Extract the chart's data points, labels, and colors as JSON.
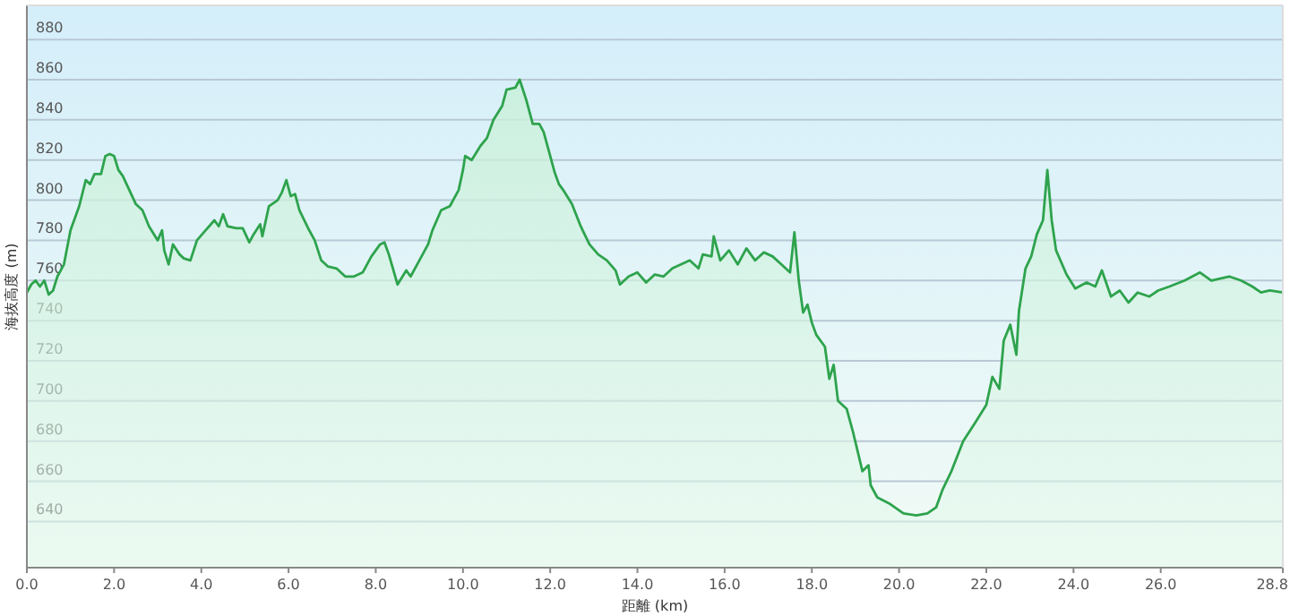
{
  "chart_data": {
    "type": "area",
    "xlabel": "距離 (km)",
    "ylabel": "海抜高度 (m)",
    "x": [
      0,
      0.1,
      0.2,
      0.3,
      0.4,
      0.5,
      0.6,
      0.7,
      0.85,
      1.0,
      1.2,
      1.35,
      1.45,
      1.55,
      1.7,
      1.8,
      1.9,
      2.0,
      2.1,
      2.2,
      2.35,
      2.5,
      2.65,
      2.8,
      3.0,
      3.1,
      3.15,
      3.25,
      3.35,
      3.5,
      3.6,
      3.75,
      3.9,
      4.1,
      4.3,
      4.4,
      4.5,
      4.6,
      4.8,
      4.95,
      5.1,
      5.2,
      5.35,
      5.4,
      5.55,
      5.75,
      5.85,
      5.95,
      6.05,
      6.15,
      6.25,
      6.45,
      6.6,
      6.75,
      6.9,
      7.1,
      7.3,
      7.5,
      7.7,
      7.9,
      8.1,
      8.2,
      8.3,
      8.5,
      8.7,
      8.8,
      9.0,
      9.2,
      9.3,
      9.5,
      9.7,
      9.9,
      10.0,
      10.05,
      10.2,
      10.4,
      10.55,
      10.7,
      10.9,
      11.0,
      11.2,
      11.3,
      11.45,
      11.6,
      11.75,
      11.85,
      12.0,
      12.1,
      12.2,
      12.3,
      12.5,
      12.7,
      12.9,
      13.1,
      13.3,
      13.5,
      13.6,
      13.8,
      14.0,
      14.2,
      14.4,
      14.6,
      14.8,
      15.0,
      15.2,
      15.4,
      15.5,
      15.7,
      15.75,
      15.9,
      16.1,
      16.3,
      16.5,
      16.7,
      16.9,
      17.1,
      17.3,
      17.5,
      17.6,
      17.7,
      17.8,
      17.9,
      18.0,
      18.1,
      18.3,
      18.4,
      18.5,
      18.6,
      18.8,
      18.95,
      19.16,
      19.3,
      19.35,
      19.5,
      19.77,
      20.1,
      20.4,
      20.65,
      20.85,
      21.0,
      21.2,
      21.47,
      21.74,
      22.0,
      22.14,
      22.3,
      22.4,
      22.55,
      22.69,
      22.75,
      22.9,
      23.03,
      23.16,
      23.3,
      23.4,
      23.5,
      23.6,
      23.84,
      24.04,
      24.3,
      24.5,
      24.65,
      24.86,
      25.06,
      25.26,
      25.47,
      25.74,
      25.94,
      26.2,
      26.55,
      26.9,
      27.16,
      27.57,
      27.84,
      28.1,
      28.3,
      28.5,
      28.8
    ],
    "series": [
      {
        "color": "#2ea34d",
        "values": [
          754,
          758,
          760,
          757,
          760,
          753,
          755,
          762,
          768,
          785,
          797,
          810,
          808,
          813,
          813,
          822,
          823,
          822,
          815,
          812,
          805,
          798,
          795,
          787,
          780,
          785,
          775,
          768,
          778,
          773,
          771,
          770,
          780,
          785,
          790,
          787,
          793,
          787,
          786,
          786,
          779,
          783,
          788,
          782,
          797,
          800,
          804,
          810,
          802,
          803,
          795,
          786,
          780,
          770,
          767,
          766,
          762,
          762,
          764,
          772,
          778,
          779,
          773,
          758,
          765,
          762,
          770,
          778,
          785,
          795,
          797,
          805,
          815,
          822,
          820,
          827,
          831,
          840,
          847,
          855,
          856,
          860,
          850,
          838,
          838,
          834,
          822,
          814,
          808,
          805,
          798,
          787,
          778,
          773,
          770,
          765,
          758,
          762,
          764,
          759,
          763,
          762,
          766,
          768,
          770,
          766,
          773,
          772,
          782,
          770,
          775,
          768,
          776,
          770,
          774,
          772,
          768,
          764,
          784,
          760,
          744,
          748,
          739,
          733,
          727,
          711,
          718,
          700,
          696,
          684,
          665,
          668,
          658,
          652,
          649,
          644,
          643,
          644,
          647,
          656,
          665,
          680,
          689,
          698,
          712,
          706,
          730,
          738,
          723,
          745,
          766,
          772,
          783,
          790,
          815,
          790,
          775,
          763,
          756,
          759,
          757,
          765,
          752,
          755,
          749,
          754,
          752,
          755,
          757,
          760,
          764,
          760,
          762,
          760,
          757,
          754,
          755,
          754
        ]
      }
    ],
    "xlim": [
      0,
      28.8
    ],
    "ylim": [
      617,
      897
    ],
    "xticks": [
      {
        "value": 0,
        "label": "0.0"
      },
      {
        "value": 2,
        "label": "2.0"
      },
      {
        "value": 4,
        "label": "4.0"
      },
      {
        "value": 6,
        "label": "6.0"
      },
      {
        "value": 8,
        "label": "8.0"
      },
      {
        "value": 10,
        "label": "10.0"
      },
      {
        "value": 12,
        "label": "12.0"
      },
      {
        "value": 14,
        "label": "14.0"
      },
      {
        "value": 16,
        "label": "16.0"
      },
      {
        "value": 18,
        "label": "18.0"
      },
      {
        "value": 20,
        "label": "20.0"
      },
      {
        "value": 22,
        "label": "22.0"
      },
      {
        "value": 24,
        "label": "24.0"
      },
      {
        "value": 26,
        "label": "26.0"
      },
      {
        "value": 28.8,
        "label": "28.8"
      }
    ],
    "yticks": [
      640,
      660,
      680,
      700,
      720,
      740,
      760,
      780,
      800,
      820,
      840,
      860,
      880
    ],
    "grid": "y"
  }
}
